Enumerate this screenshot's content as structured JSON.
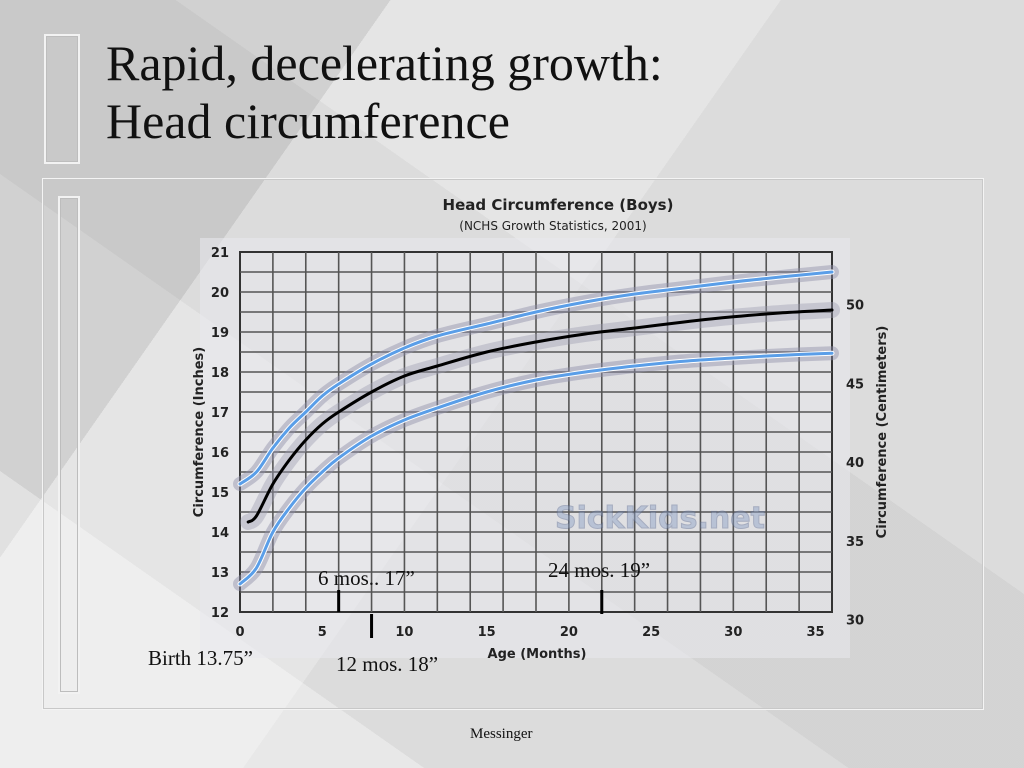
{
  "slide": {
    "title_line1": "Rapid, decelerating growth:",
    "title_line2": "Head circumference",
    "footer": "Messinger"
  },
  "annotations": {
    "birth": "Birth 13.75”",
    "six_mos": "6 mos.. 17”",
    "twelve_mos": "12 mos. 18”",
    "twentyfour_mos": "24 mos. 19”"
  },
  "chart_data": {
    "type": "line",
    "title": "Head Circumference (Boys)",
    "subtitle": "(NCHS Growth Statistics, 2001)",
    "xlabel": "Age (Months)",
    "ylabel": "Circumference (Inches)",
    "ylabel_right": "Circumference (Centimeters)",
    "xlim": [
      0,
      36
    ],
    "ylim": [
      12,
      21
    ],
    "ylim_right_cm": [
      30,
      53.34
    ],
    "x_ticks": [
      0,
      5,
      10,
      15,
      20,
      25,
      30,
      35
    ],
    "y_ticks": [
      12,
      13,
      14,
      15,
      16,
      17,
      18,
      19,
      20,
      21
    ],
    "y_right_ticks": [
      30,
      35,
      40,
      45,
      50
    ],
    "grid": true,
    "watermark": "SickKids.net",
    "series": [
      {
        "color": "#5a9ee8",
        "x": [
          0,
          1,
          2,
          3,
          4,
          5,
          6,
          8,
          10,
          12,
          15,
          18,
          21,
          24,
          27,
          30,
          33,
          36
        ],
        "values": [
          15.2,
          15.5,
          16.1,
          16.6,
          17.0,
          17.4,
          17.7,
          18.2,
          18.6,
          18.9,
          19.2,
          19.5,
          19.75,
          19.95,
          20.1,
          20.25,
          20.38,
          20.5
        ]
      },
      {
        "color": "#000000",
        "x": [
          0.5,
          1,
          2,
          3,
          4,
          5,
          6,
          8,
          10,
          12,
          15,
          18,
          21,
          24,
          27,
          30,
          33,
          36
        ],
        "values": [
          14.25,
          14.4,
          15.2,
          15.8,
          16.3,
          16.7,
          17.0,
          17.5,
          17.9,
          18.15,
          18.5,
          18.75,
          18.95,
          19.1,
          19.25,
          19.38,
          19.48,
          19.55
        ]
      },
      {
        "color": "#5a9ee8",
        "x": [
          0,
          1,
          2,
          3,
          4,
          5,
          6,
          8,
          10,
          12,
          15,
          18,
          21,
          24,
          27,
          30,
          33,
          36
        ],
        "values": [
          12.7,
          13.1,
          14.0,
          14.6,
          15.1,
          15.5,
          15.85,
          16.4,
          16.8,
          17.1,
          17.5,
          17.8,
          18.0,
          18.15,
          18.27,
          18.35,
          18.42,
          18.47
        ]
      }
    ],
    "markers_months": [
      6,
      8,
      22
    ]
  }
}
